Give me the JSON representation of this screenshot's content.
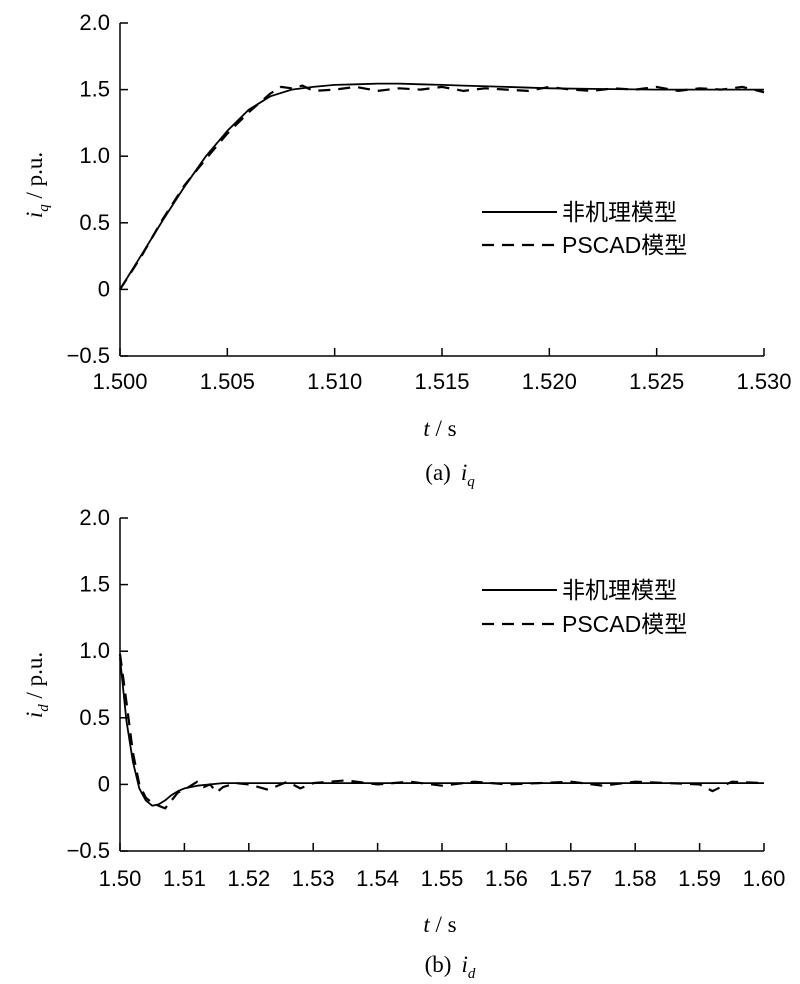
{
  "chart_data": [
    {
      "type": "line",
      "caption_prefix": "(a)",
      "caption_var": "i",
      "caption_sub": "q",
      "xlabel_var": "t",
      "xlabel_unit": " / s",
      "ylabel_var": "i",
      "ylabel_sub": "q",
      "ylabel_unit": " / p.u.",
      "xlim": [
        1.5,
        1.53
      ],
      "ylim": [
        -0.5,
        2.0
      ],
      "xticks": [
        1.5,
        1.505,
        1.51,
        1.515,
        1.52,
        1.525,
        1.53
      ],
      "xtick_labels": [
        "1.500",
        "1.505",
        "1.510",
        "1.515",
        "1.520",
        "1.525",
        "1.530"
      ],
      "yticks": [
        2.0,
        1.5,
        1.0,
        0.5,
        0,
        -0.5
      ],
      "ytick_labels": [
        "2.0",
        "1.5",
        "1.0",
        "0.5",
        "0",
        "−0.5"
      ],
      "legend_position": "right",
      "grid": false,
      "series": [
        {
          "name": "非机理模型",
          "style": "solid",
          "x": [
            1.5,
            1.501,
            1.502,
            1.503,
            1.504,
            1.505,
            1.506,
            1.507,
            1.508,
            1.509,
            1.51,
            1.511,
            1.512,
            1.513,
            1.514,
            1.515,
            1.516,
            1.518,
            1.52,
            1.522,
            1.525,
            1.528,
            1.53
          ],
          "y": [
            0.0,
            0.26,
            0.52,
            0.77,
            1.0,
            1.19,
            1.35,
            1.45,
            1.5,
            1.52,
            1.535,
            1.54,
            1.545,
            1.545,
            1.54,
            1.535,
            1.53,
            1.52,
            1.51,
            1.505,
            1.5,
            1.5,
            1.5
          ]
        },
        {
          "name": "PSCAD模型",
          "style": "dashed",
          "x": [
            1.5,
            1.501,
            1.502,
            1.503,
            1.504,
            1.505,
            1.506,
            1.507,
            1.5075,
            1.508,
            1.5085,
            1.509,
            1.51,
            1.511,
            1.512,
            1.513,
            1.514,
            1.515,
            1.516,
            1.517,
            1.518,
            1.519,
            1.52,
            1.521,
            1.522,
            1.523,
            1.524,
            1.525,
            1.526,
            1.527,
            1.528,
            1.529,
            1.53
          ],
          "y": [
            0.0,
            0.25,
            0.53,
            0.78,
            0.98,
            1.17,
            1.33,
            1.47,
            1.52,
            1.51,
            1.53,
            1.49,
            1.5,
            1.52,
            1.49,
            1.51,
            1.5,
            1.52,
            1.49,
            1.51,
            1.5,
            1.49,
            1.52,
            1.5,
            1.49,
            1.51,
            1.5,
            1.52,
            1.49,
            1.51,
            1.5,
            1.52,
            1.48
          ]
        }
      ]
    },
    {
      "type": "line",
      "caption_prefix": "(b)",
      "caption_var": "i",
      "caption_sub": "d",
      "xlabel_var": "t",
      "xlabel_unit": " / s",
      "ylabel_var": "i",
      "ylabel_sub": "d",
      "ylabel_unit": " / p.u.",
      "xlim": [
        1.5,
        1.6
      ],
      "ylim": [
        -0.5,
        2.0
      ],
      "xticks": [
        1.5,
        1.51,
        1.52,
        1.53,
        1.54,
        1.55,
        1.56,
        1.57,
        1.58,
        1.59,
        1.6
      ],
      "xtick_labels": [
        "1.50",
        "1.51",
        "1.52",
        "1.53",
        "1.54",
        "1.55",
        "1.56",
        "1.57",
        "1.58",
        "1.59",
        "1.60"
      ],
      "yticks": [
        2.0,
        1.5,
        1.0,
        0.5,
        0,
        -0.5
      ],
      "ytick_labels": [
        "2.0",
        "1.5",
        "1.0",
        "0.5",
        "0",
        "−0.5"
      ],
      "legend_position": "top-right",
      "grid": false,
      "series": [
        {
          "name": "非机理模型",
          "style": "solid",
          "x": [
            1.5,
            1.501,
            1.502,
            1.503,
            1.504,
            1.505,
            1.506,
            1.507,
            1.508,
            1.509,
            1.51,
            1.512,
            1.514,
            1.516,
            1.518,
            1.52,
            1.53,
            1.54,
            1.56,
            1.58,
            1.6
          ],
          "y": [
            0.95,
            0.48,
            0.17,
            -0.03,
            -0.12,
            -0.16,
            -0.15,
            -0.12,
            -0.08,
            -0.05,
            -0.03,
            -0.01,
            0.0,
            0.01,
            0.01,
            0.01,
            0.01,
            0.01,
            0.01,
            0.01,
            0.01
          ]
        },
        {
          "name": "PSCAD模型",
          "style": "dashed",
          "x": [
            1.5,
            1.501,
            1.502,
            1.503,
            1.504,
            1.505,
            1.506,
            1.507,
            1.508,
            1.509,
            1.51,
            1.511,
            1.512,
            1.513,
            1.514,
            1.515,
            1.516,
            1.518,
            1.52,
            1.523,
            1.526,
            1.528,
            1.53,
            1.535,
            1.54,
            1.545,
            1.55,
            1.555,
            1.56,
            1.565,
            1.57,
            1.575,
            1.58,
            1.585,
            1.59,
            1.592,
            1.595,
            1.6
          ],
          "y": [
            0.98,
            0.62,
            0.24,
            0.0,
            -0.1,
            -0.14,
            -0.16,
            -0.18,
            -0.12,
            -0.06,
            -0.04,
            -0.01,
            0.02,
            -0.02,
            0.0,
            -0.06,
            -0.02,
            0.01,
            0.0,
            -0.04,
            0.02,
            -0.03,
            0.01,
            0.03,
            0.0,
            0.02,
            -0.01,
            0.02,
            0.0,
            0.01,
            0.02,
            -0.01,
            0.02,
            0.01,
            0.0,
            -0.05,
            0.02,
            0.01
          ]
        }
      ]
    }
  ]
}
